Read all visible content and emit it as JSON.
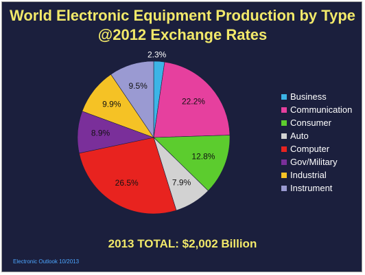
{
  "title_line1": "World Electronic Equipment Production by Type",
  "title_line2": "@2012 Exchange Rates",
  "total_text": "2013 TOTAL: $2,002 Billion",
  "source": "Electronic Outlook 10/2013",
  "chart_data": {
    "type": "pie",
    "title": "World Electronic Equipment Production by Type @2012 Exchange Rates",
    "legend_position": "right",
    "slices": [
      {
        "name": "Business",
        "value": 2.3,
        "label": "2.3%",
        "color": "#3cb4e6"
      },
      {
        "name": "Communication",
        "value": 22.2,
        "label": "22.2%",
        "color": "#e6409e"
      },
      {
        "name": "Consumer",
        "value": 12.8,
        "label": "12.8%",
        "color": "#5ccc2e"
      },
      {
        "name": "Auto",
        "value": 7.9,
        "label": "7.9%",
        "color": "#d2d2d2"
      },
      {
        "name": "Computer",
        "value": 26.5,
        "label": "26.5%",
        "color": "#e8231f"
      },
      {
        "name": "Gov/Military",
        "value": 8.9,
        "label": "8.9%",
        "color": "#7a2f9a"
      },
      {
        "name": "Industrial",
        "value": 9.9,
        "label": "9.9%",
        "color": "#f5c225"
      },
      {
        "name": "Instrument",
        "value": 9.5,
        "label": "9.5%",
        "color": "#9a9ad2"
      }
    ]
  }
}
